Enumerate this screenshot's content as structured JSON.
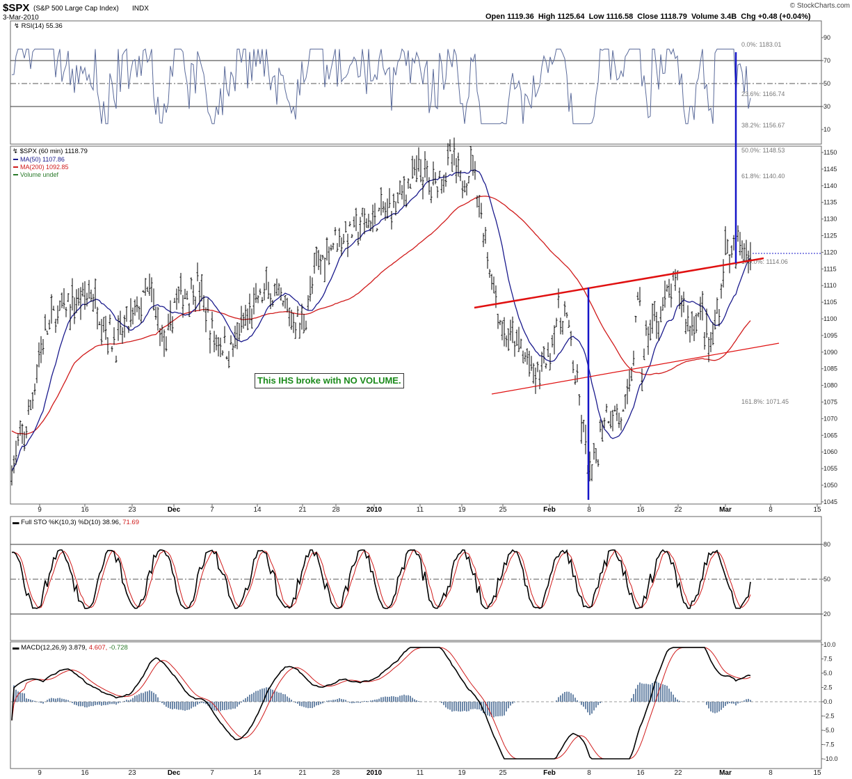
{
  "header": {
    "symbol": "$SPX",
    "name": "(S&P 500 Large Cap Index)",
    "exchange": "INDX",
    "date": "3-Mar-2010",
    "ohlc": "Open 1119.36  High 1125.64  Low 1116.58  Close 1118.79  Volume 3.4B  Chg +0.48 (+0.04%)",
    "brand": "© StockCharts.com"
  },
  "colors": {
    "price_bars": "#000000",
    "ma50": "#1a1a8c",
    "ma200": "#d01a1a",
    "rsi_line": "#5a6a9a",
    "trendline_red": "#e01010",
    "vertical_blue": "#1515c8",
    "annotation_text": "#1a8a1a",
    "macd_hist": "#3a5f8a"
  },
  "rsi_panel": {
    "title": "RSI(14) 55.36",
    "ticks": [
      "90",
      "70",
      "50",
      "30",
      "10"
    ]
  },
  "price_panel": {
    "title": "$SPX (60 min) 1118.79",
    "legend": [
      {
        "label": "MA(50) 1107.86",
        "color": "#1a1a8c"
      },
      {
        "label": "MA(200) 1092.85",
        "color": "#d01a1a"
      },
      {
        "label": "Volume undef",
        "color": "#2a7a2a"
      }
    ],
    "ticks": [
      "1150",
      "1145",
      "1140",
      "1135",
      "1130",
      "1125",
      "1120",
      "1115",
      "1110",
      "1105",
      "1100",
      "1095",
      "1090",
      "1085",
      "1080",
      "1075",
      "1070",
      "1065",
      "1060",
      "1055",
      "1050",
      "1045"
    ],
    "fib_labels": [
      "0.0%: 1183.01",
      "23.6%: 1166.74",
      "38.2%: 1156.67",
      "50.0%: 1148.53",
      "61.8%: 1140.40",
      "100.0%: 1114.06",
      "161.8%: 1071.45"
    ],
    "annotation": "This IHS broke with NO VOLUME."
  },
  "sto_panel": {
    "title_a": "Full STO %K(10,3) %D(10) 38.96,",
    "title_b": "71.69",
    "ticks": [
      "80",
      "50",
      "20"
    ]
  },
  "macd_panel": {
    "title_a": "MACD(12,26,9) 3.879,",
    "title_b": "4.607,",
    "title_c": "-0.728",
    "ticks": [
      "10.0",
      "7.5",
      "5.0",
      "2.5",
      "0.0",
      "-2.5",
      "-5.0",
      "-7.5",
      "-10.0"
    ]
  },
  "x_axis": {
    "labels": [
      "9",
      "16",
      "23",
      "Dec",
      "7",
      "14",
      "21",
      "28",
      "2010",
      "11",
      "19",
      "25",
      "Feb",
      "8",
      "16",
      "22",
      "Mar",
      "8",
      "15"
    ],
    "bold": [
      "Dec",
      "2010",
      "Feb",
      "Mar"
    ]
  },
  "chart_data": {
    "type": "line",
    "title": "$SPX (60 min) 1118.79",
    "ylim": [
      1045,
      1150
    ],
    "x_labels": [
      "9",
      "16",
      "23",
      "Dec",
      "7",
      "14",
      "21",
      "28",
      "2010",
      "11",
      "19",
      "25",
      "Feb",
      "8",
      "16",
      "22",
      "Mar",
      "8",
      "15"
    ],
    "price_waypoints": {
      "x": [
        "9",
        "16",
        "23",
        "Dec",
        "7",
        "14",
        "21",
        "28",
        "2010",
        "11",
        "19",
        "25",
        "Feb",
        "8",
        "16",
        "22",
        "Mar"
      ],
      "y": [
        1090,
        1110,
        1100,
        1105,
        1095,
        1105,
        1098,
        1125,
        1130,
        1145,
        1140,
        1095,
        1090,
        1050,
        1080,
        1110,
        1122
      ]
    },
    "last": {
      "open": 1119.36,
      "high": 1125.64,
      "low": 1116.58,
      "close": 1118.79
    },
    "series": [
      {
        "name": "MA(50)",
        "last": 1107.86
      },
      {
        "name": "MA(200)",
        "last": 1092.85
      }
    ],
    "rsi": {
      "name": "RSI(14)",
      "last": 55.36,
      "ylim": [
        0,
        100
      ]
    },
    "stochastic": {
      "k": 38.96,
      "d": 71.69,
      "ylim": [
        0,
        100
      ]
    },
    "macd": {
      "macd": 3.879,
      "signal": 4.607,
      "hist": -0.728,
      "ylim": [
        -11,
        11
      ]
    },
    "fibonacci": [
      {
        "level": "0.0%",
        "value": 1183.01
      },
      {
        "level": "23.6%",
        "value": 1166.74
      },
      {
        "level": "38.2%",
        "value": 1156.67
      },
      {
        "level": "50.0%",
        "value": 1148.53
      },
      {
        "level": "61.8%",
        "value": 1140.4
      },
      {
        "level": "100.0%",
        "value": 1114.06
      },
      {
        "level": "161.8%",
        "value": 1071.45
      }
    ],
    "grid": false
  }
}
